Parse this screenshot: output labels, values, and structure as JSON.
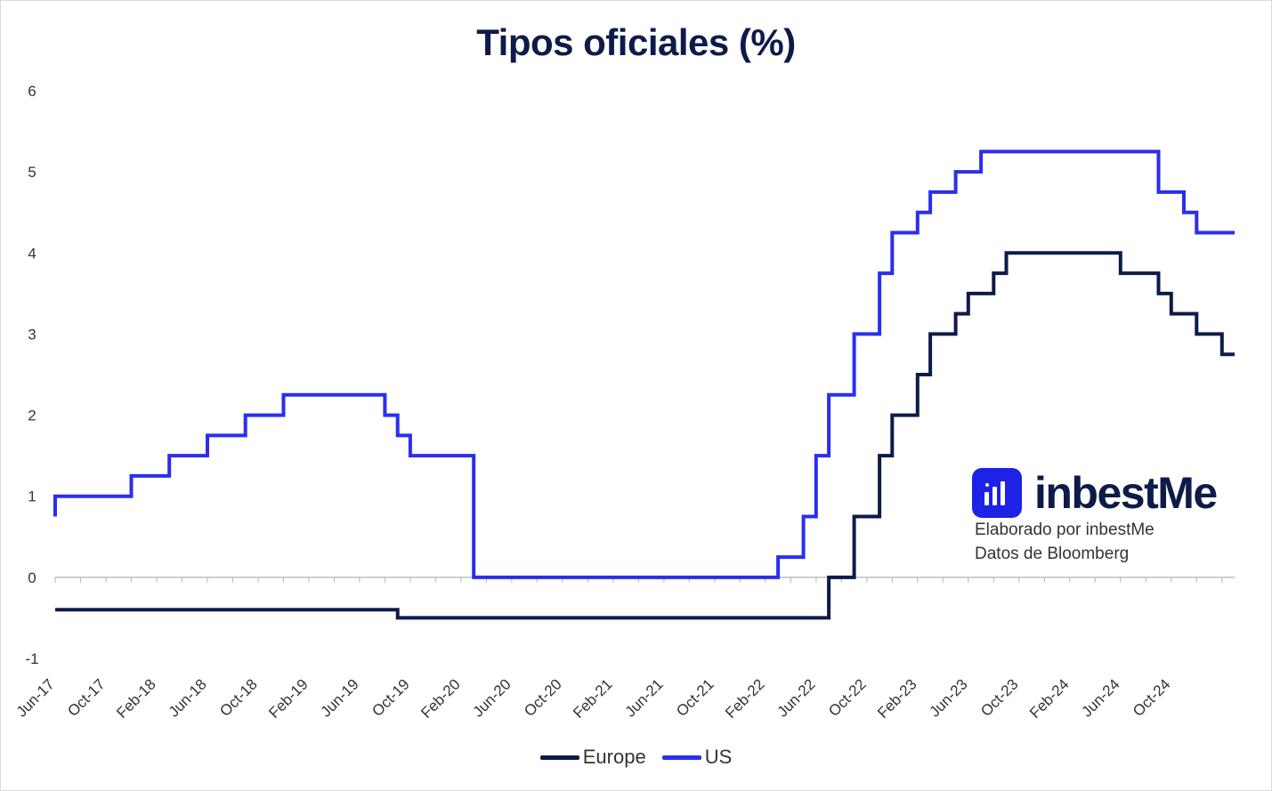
{
  "chart_data": {
    "type": "line",
    "title": "Tipos oficiales (%)",
    "xlabel": "",
    "ylabel": "",
    "ylim": [
      -1,
      6
    ],
    "yticks": [
      "6",
      "5",
      "4",
      "3",
      "2",
      "1",
      "0",
      "-1"
    ],
    "x_start": "Jun-17",
    "x_end": "Mar-25",
    "x_tick_labels": [
      "Jun-17",
      "Oct-17",
      "Feb-18",
      "Jun-18",
      "Oct-18",
      "Feb-19",
      "Jun-19",
      "Oct-19",
      "Feb-20",
      "Jun-20",
      "Oct-20",
      "Feb-21",
      "Jun-21",
      "Oct-21",
      "Feb-22",
      "Jun-22",
      "Oct-22",
      "Feb-23",
      "Jun-23",
      "Oct-23",
      "Feb-24",
      "Jun-24",
      "Oct-24"
    ],
    "grid": false,
    "legend_position": "bottom",
    "step": true,
    "series": [
      {
        "name": "Europe",
        "color": "#0d1b4a",
        "points": [
          [
            "Jun-17",
            -0.4
          ],
          [
            "Sep-19",
            -0.5
          ],
          [
            "Jul-22",
            0
          ],
          [
            "Sep-22",
            0.75
          ],
          [
            "Nov-22",
            1.5
          ],
          [
            "Dec-22",
            2.0
          ],
          [
            "Feb-23",
            2.5
          ],
          [
            "Mar-23",
            3.0
          ],
          [
            "May-23",
            3.25
          ],
          [
            "Jun-23",
            3.5
          ],
          [
            "Aug-23",
            3.75
          ],
          [
            "Sep-23",
            4.0
          ],
          [
            "Jun-24",
            3.75
          ],
          [
            "Sep-24",
            3.5
          ],
          [
            "Oct-24",
            3.25
          ],
          [
            "Dec-24",
            3.0
          ],
          [
            "Feb-25",
            2.75
          ],
          [
            "Mar-25",
            2.75
          ]
        ]
      },
      {
        "name": "US",
        "color": "#2b2ef0",
        "points": [
          [
            "Jun-17",
            0.75
          ],
          [
            "Jun-17",
            1.0
          ],
          [
            "Dec-17",
            1.25
          ],
          [
            "Mar-18",
            1.5
          ],
          [
            "Jun-18",
            1.75
          ],
          [
            "Sep-18",
            2.0
          ],
          [
            "Dec-18",
            2.25
          ],
          [
            "Aug-19",
            2.0
          ],
          [
            "Sep-19",
            1.75
          ],
          [
            "Oct-19",
            1.5
          ],
          [
            "Mar-20",
            1.0
          ],
          [
            "Mar-20",
            0.0
          ],
          [
            "Mar-22",
            0.25
          ],
          [
            "May-22",
            0.75
          ],
          [
            "Jun-22",
            1.5
          ],
          [
            "Jul-22",
            2.25
          ],
          [
            "Sep-22",
            3.0
          ],
          [
            "Nov-22",
            3.75
          ],
          [
            "Dec-22",
            4.25
          ],
          [
            "Feb-23",
            4.5
          ],
          [
            "Mar-23",
            4.75
          ],
          [
            "May-23",
            5.0
          ],
          [
            "Jul-23",
            5.25
          ],
          [
            "Sep-24",
            4.75
          ],
          [
            "Nov-24",
            4.5
          ],
          [
            "Dec-24",
            4.25
          ],
          [
            "Mar-25",
            4.25
          ]
        ]
      }
    ]
  },
  "brand": {
    "name": "inbestMe",
    "line1": "Elaborado por inbestMe",
    "line2": "Datos de Bloomberg",
    "logo_color": "#1d22e6"
  },
  "colors": {
    "title": "#0d1b4a",
    "axis": "#bfbfbf"
  }
}
